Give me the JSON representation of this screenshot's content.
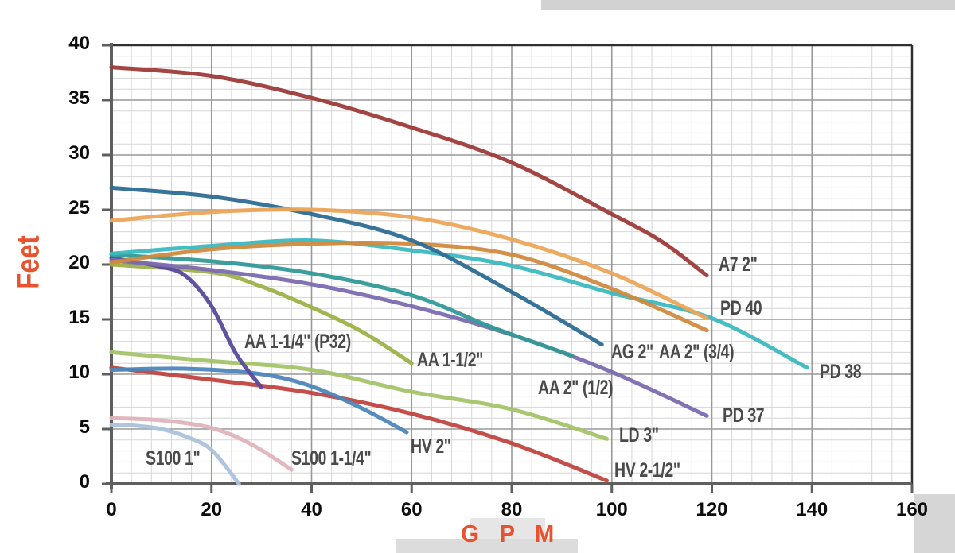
{
  "chart_data": {
    "type": "line",
    "title": "",
    "xlabel": "G P M",
    "ylabel": "Feet",
    "xlim": [
      0,
      160
    ],
    "ylim": [
      0,
      40
    ],
    "x_ticks": [
      0,
      20,
      40,
      60,
      80,
      100,
      120,
      140,
      160
    ],
    "y_ticks": [
      0,
      5,
      10,
      15,
      20,
      25,
      30,
      35,
      40
    ],
    "x_minor_step": 4,
    "y_minor_step": 1,
    "grid": "on",
    "legend_position": "inline-labels",
    "colors": {
      "axis_title": "#e7532f",
      "tick_text": "#0d0d0d",
      "curve_label_text": "#4a4a4a",
      "minor_grid": "#d6d6d6",
      "major_grid": "#999999",
      "axis_line": "#5f5f5f",
      "plot_border": "#303030"
    },
    "series": [
      {
        "name": "A7 2\"",
        "color": "#9e3b38",
        "points": [
          [
            0,
            38
          ],
          [
            20,
            37.2
          ],
          [
            40,
            35.2
          ],
          [
            60,
            32.5
          ],
          [
            80,
            29.3
          ],
          [
            100,
            24.6
          ],
          [
            110,
            22.1
          ],
          [
            119,
            19.0
          ]
        ],
        "label": {
          "text": "A7 2\"",
          "gpm": 121.4,
          "feet": 20.0
        }
      },
      {
        "name": "PD 40",
        "color": "#eca558",
        "points": [
          [
            0,
            24
          ],
          [
            20,
            24.8
          ],
          [
            40,
            25
          ],
          [
            60,
            24.3
          ],
          [
            80,
            22.3
          ],
          [
            100,
            19.2
          ],
          [
            119,
            15.1
          ]
        ],
        "label": {
          "text": "PD 40",
          "gpm": 121.7,
          "feet": 16.0
        }
      },
      {
        "name": "AG 2\"",
        "color": "#2d6b93",
        "points": [
          [
            0,
            27
          ],
          [
            20,
            26.2
          ],
          [
            40,
            24.6
          ],
          [
            60,
            22.2
          ],
          [
            80,
            17.5
          ],
          [
            98,
            12.7
          ]
        ],
        "label": {
          "text": "AG 2\"",
          "gpm": 99.9,
          "feet": 12.0
        }
      },
      {
        "name": "AA 2\" (3/4)",
        "color": "#d08a3e",
        "points": [
          [
            0,
            20.2
          ],
          [
            20,
            21.4
          ],
          [
            40,
            21.9
          ],
          [
            60,
            21.9
          ],
          [
            80,
            20.9
          ],
          [
            100,
            17.8
          ],
          [
            119,
            14.0
          ]
        ],
        "label": {
          "text": "AA 2\" (3/4)",
          "gpm": 109.4,
          "feet": 12.0
        }
      },
      {
        "name": "PD 38",
        "color": "#3cb8c0",
        "points": [
          [
            0,
            21
          ],
          [
            20,
            21.7
          ],
          [
            40,
            22.2
          ],
          [
            60,
            21.3
          ],
          [
            80,
            19.9
          ],
          [
            100,
            17.4
          ],
          [
            120,
            15.1
          ],
          [
            139,
            10.6
          ]
        ],
        "label": {
          "text": "PD 38",
          "gpm": 141.6,
          "feet": 10.2
        }
      },
      {
        "name": "AA 2\" (1/2)",
        "color": "#2f9a98",
        "points": [
          [
            0,
            20.9
          ],
          [
            20,
            20.3
          ],
          [
            40,
            19.2
          ],
          [
            60,
            17.2
          ],
          [
            76,
            14.3
          ],
          [
            92,
            11.7
          ]
        ],
        "label": {
          "text": "AA 2\" (1/2)",
          "gpm": 85.2,
          "feet": 8.8
        }
      },
      {
        "name": "PD 37",
        "color": "#7b6cb0",
        "points": [
          [
            0,
            20.4
          ],
          [
            20,
            19.5
          ],
          [
            40,
            18.2
          ],
          [
            60,
            16.2
          ],
          [
            80,
            13.6
          ],
          [
            100,
            10.2
          ],
          [
            119,
            6.2
          ]
        ],
        "label": {
          "text": "PD 37",
          "gpm": 122.1,
          "feet": 6.2
        }
      },
      {
        "name": "AA 1-1/4\" (P32)",
        "color": "#5a4a9c",
        "points": [
          [
            0,
            20.6
          ],
          [
            10,
            19.8
          ],
          [
            15,
            18.9
          ],
          [
            20,
            16.2
          ],
          [
            25,
            11.8
          ],
          [
            30,
            8.8
          ]
        ],
        "label": {
          "text": "AA 1-1/4\" (P32)",
          "gpm": 26.6,
          "feet": 13.0
        }
      },
      {
        "name": "AA 1-1/2\"",
        "color": "#9cb148",
        "points": [
          [
            0,
            20.0
          ],
          [
            20,
            19.3
          ],
          [
            30,
            18.0
          ],
          [
            40,
            16.1
          ],
          [
            50,
            13.9
          ],
          [
            60,
            11.0
          ]
        ],
        "label": {
          "text": "AA 1-1/2\"",
          "gpm": 61.1,
          "feet": 11.3
        }
      },
      {
        "name": "LD 3\"",
        "color": "#a3c468",
        "points": [
          [
            0,
            12
          ],
          [
            20,
            11.2
          ],
          [
            40,
            10.4
          ],
          [
            60,
            8.4
          ],
          [
            80,
            6.8
          ],
          [
            99,
            4.1
          ]
        ],
        "label": {
          "text": "LD 3\"",
          "gpm": 101.4,
          "feet": 4.4
        }
      },
      {
        "name": "HV 2\"",
        "color": "#4d86bb",
        "points": [
          [
            0,
            10.4
          ],
          [
            15,
            10.5
          ],
          [
            30,
            10.0
          ],
          [
            40,
            8.9
          ],
          [
            50,
            6.9
          ],
          [
            59,
            4.7
          ]
        ],
        "label": {
          "text": "HV 2\"",
          "gpm": 59.8,
          "feet": 3.4
        }
      },
      {
        "name": "HV 2-1/2\"",
        "color": "#c04540",
        "points": [
          [
            0,
            10.6
          ],
          [
            20,
            9.5
          ],
          [
            40,
            8.3
          ],
          [
            60,
            6.4
          ],
          [
            80,
            3.7
          ],
          [
            99,
            0.3
          ]
        ],
        "label": {
          "text": "HV 2-1/2\"",
          "gpm": 100.5,
          "feet": 1.2
        }
      },
      {
        "name": "S100 1\"",
        "color": "#abc2dc",
        "points": [
          [
            0,
            5.4
          ],
          [
            5,
            5.3
          ],
          [
            10,
            5.0
          ],
          [
            15,
            4.3
          ],
          [
            20,
            3.1
          ],
          [
            25.5,
            0
          ]
        ],
        "label": {
          "text": "S100 1\"",
          "gpm": 6.8,
          "feet": 2.3
        }
      },
      {
        "name": "S100 1-1/4\"",
        "color": "#dfb3bd",
        "points": [
          [
            0,
            6.0
          ],
          [
            10,
            5.8
          ],
          [
            20,
            5.1
          ],
          [
            28,
            3.6
          ],
          [
            36,
            1.3
          ]
        ],
        "label": {
          "text": "S100 1-1/4\"",
          "gpm": 35.9,
          "feet": 2.3
        }
      }
    ]
  }
}
